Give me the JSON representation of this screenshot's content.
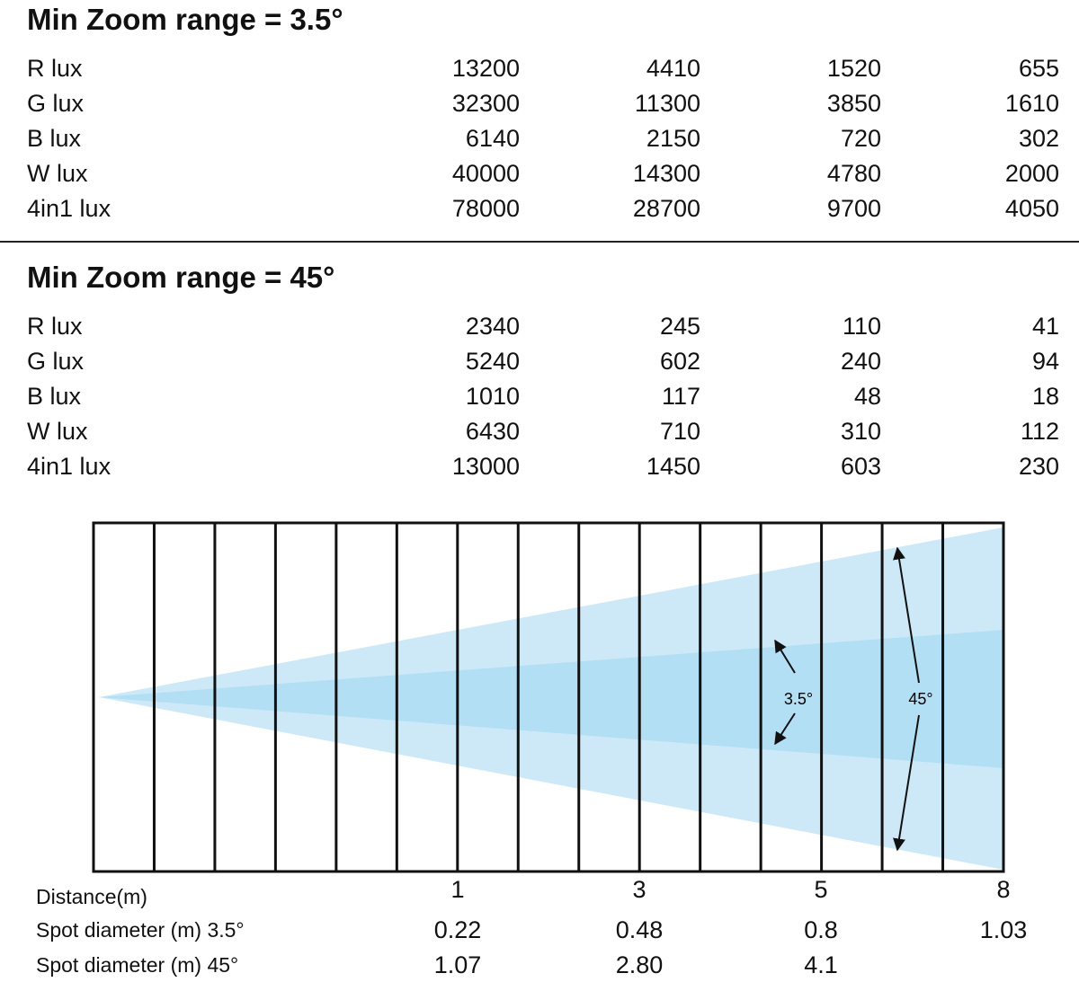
{
  "sections": [
    {
      "title": "Min Zoom range = 3.5°",
      "rows": [
        {
          "label": "R lux",
          "values": [
            "13200",
            "4410",
            "1520",
            "655"
          ]
        },
        {
          "label": "G lux",
          "values": [
            "32300",
            "11300",
            "3850",
            "1610"
          ]
        },
        {
          "label": "B lux",
          "values": [
            "6140",
            "2150",
            "720",
            "302"
          ]
        },
        {
          "label": "W lux",
          "values": [
            "40000",
            "14300",
            "4780",
            "2000"
          ]
        },
        {
          "label": "4in1 lux",
          "values": [
            "78000",
            "28700",
            "9700",
            "4050"
          ]
        }
      ]
    },
    {
      "title": "Min Zoom range = 45°",
      "rows": [
        {
          "label": "R lux",
          "values": [
            "2340",
            "245",
            "110",
            "41"
          ]
        },
        {
          "label": "G lux",
          "values": [
            "5240",
            "602",
            "240",
            "94"
          ]
        },
        {
          "label": "B lux",
          "values": [
            "1010",
            "117",
            "48",
            "18"
          ]
        },
        {
          "label": "W lux",
          "values": [
            "6430",
            "710",
            "310",
            "112"
          ]
        },
        {
          "label": "4in1 lux",
          "values": [
            "13000",
            "1450",
            "603",
            "230"
          ]
        }
      ]
    }
  ],
  "diagram": {
    "narrow_angle_label": "3.5°",
    "wide_angle_label": "45°",
    "colors": {
      "wide_beam": "#cde9f7",
      "narrow_beam": "#b3dff5",
      "grid": "#111111"
    }
  },
  "bottom": {
    "rows": [
      {
        "label": "Distance(m)",
        "values": [
          "1",
          "3",
          "5",
          "8"
        ]
      },
      {
        "label": "Spot diameter (m) 3.5°",
        "values": [
          "0.22",
          "0.48",
          "0.8",
          "1.03"
        ]
      },
      {
        "label": "Spot diameter (m) 45°",
        "values": [
          "1.07",
          "2.80",
          "4.1",
          ""
        ]
      }
    ]
  }
}
